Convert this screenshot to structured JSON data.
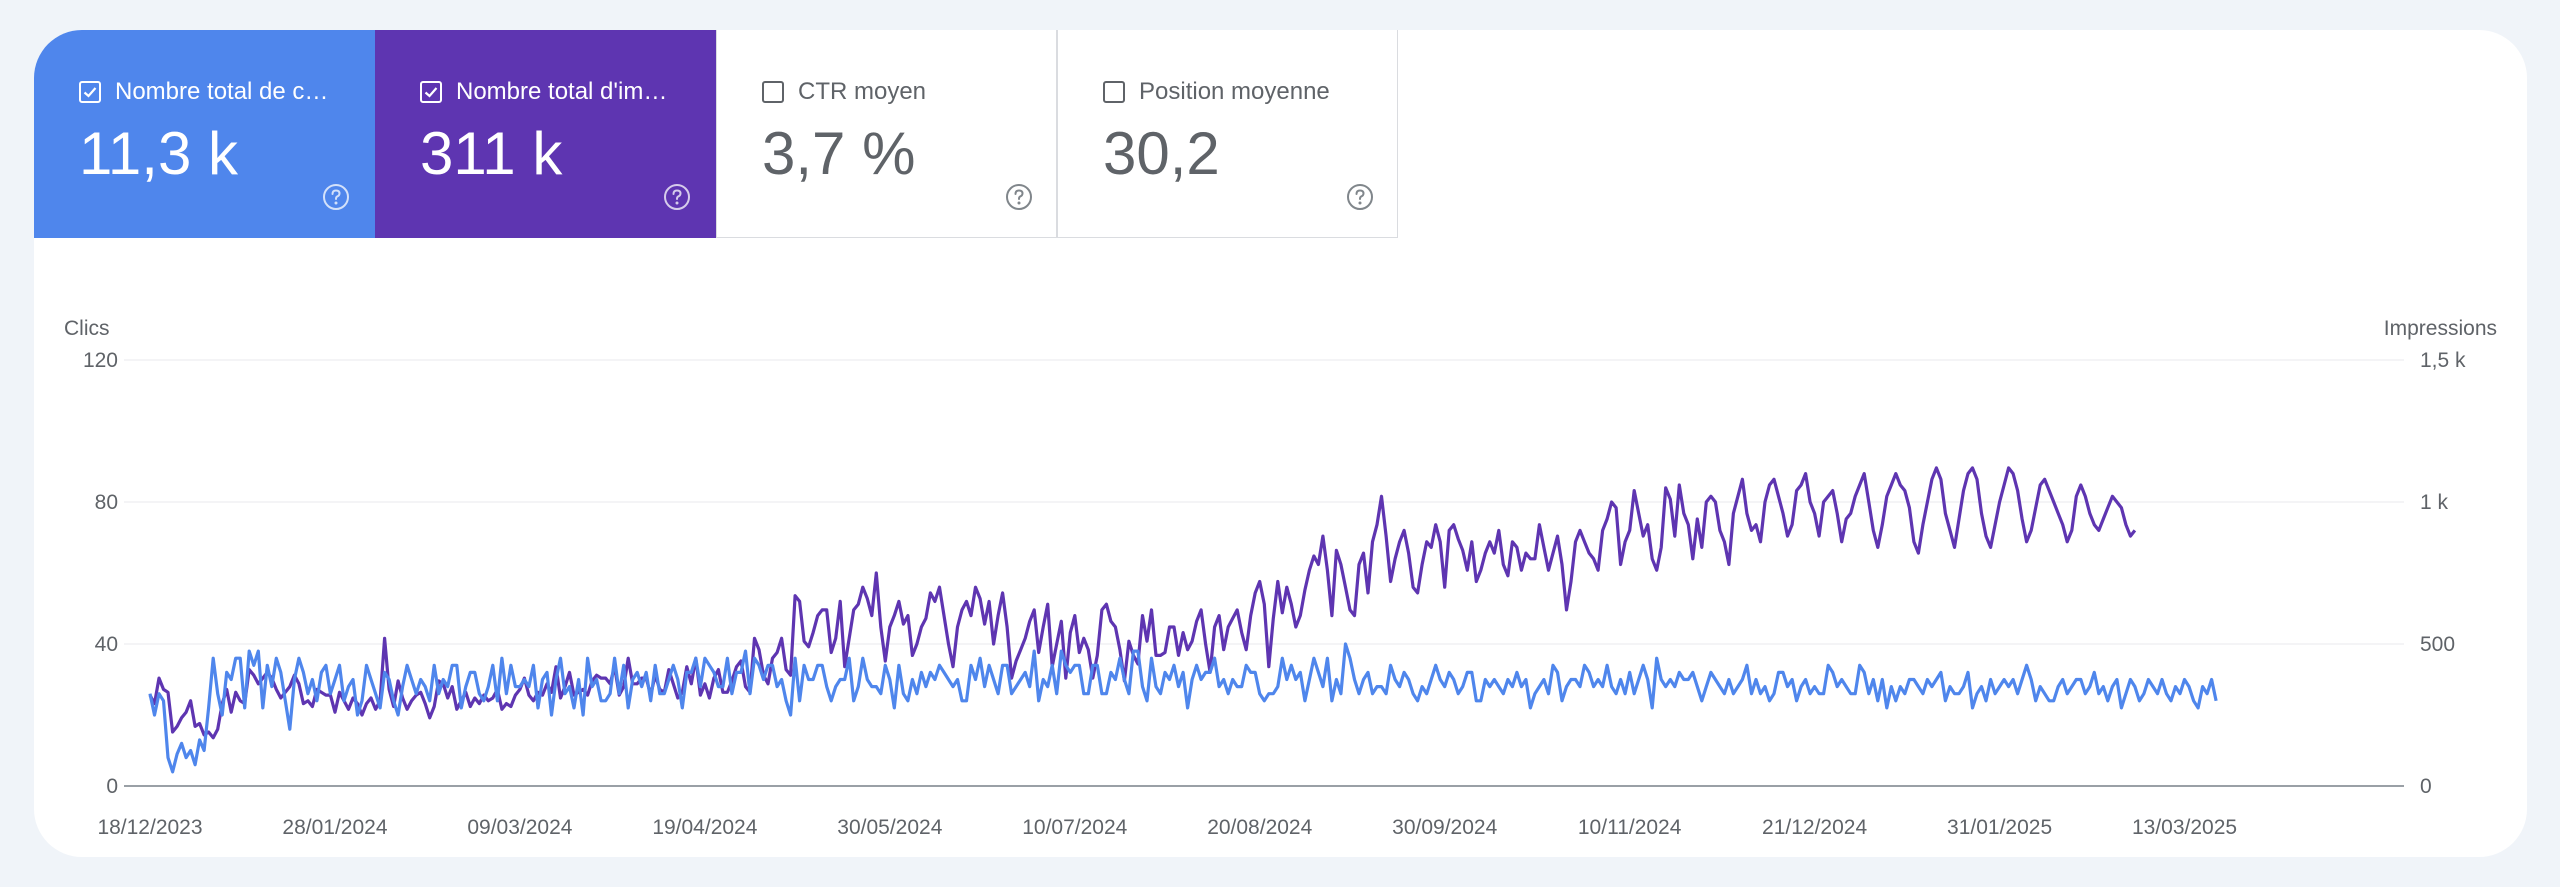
{
  "metrics": [
    {
      "label": "Nombre total de c…",
      "value": "11,3 k",
      "checked": true,
      "color": "#4f86ec"
    },
    {
      "label": "Nombre total d'im…",
      "value": "311 k",
      "checked": true,
      "color": "#5e35b1"
    },
    {
      "label": "CTR moyen",
      "value": "3,7 %",
      "checked": false,
      "color": "#ffffff"
    },
    {
      "label": "Position moyenne",
      "value": "30,2",
      "checked": false,
      "color": "#ffffff"
    }
  ],
  "chart_data": {
    "type": "line",
    "left_axis_title": "Clics",
    "right_axis_title": "Impressions",
    "left_ticks": [
      "0",
      "40",
      "80",
      "120"
    ],
    "right_ticks": [
      "0",
      "500",
      "1 k",
      "1,5 k"
    ],
    "y_left_range": [
      0,
      120
    ],
    "y_right_range": [
      0,
      1500
    ],
    "x_ticks": [
      "18/12/2023",
      "28/01/2024",
      "09/03/2024",
      "19/04/2024",
      "30/05/2024",
      "10/07/2024",
      "20/08/2024",
      "30/09/2024",
      "10/11/2024",
      "21/12/2024",
      "31/01/2025",
      "13/03/2025"
    ],
    "x_start": "2023-12-18",
    "x_end": "2025-04-24",
    "grid": true,
    "series": [
      {
        "axis": "left",
        "color": "#4f86ec",
        "start_date": "2023-12-18",
        "values": [
          26,
          20,
          26,
          24,
          8,
          4,
          9,
          12,
          8,
          10,
          6,
          13,
          10,
          22,
          36,
          26,
          20,
          32,
          30,
          36,
          36,
          22,
          38,
          34,
          38,
          22,
          34,
          28,
          36,
          32,
          24,
          16,
          30,
          36,
          32,
          26,
          30,
          24,
          32,
          34,
          26,
          30,
          34,
          24,
          28,
          30,
          20,
          24,
          34,
          30,
          26,
          22,
          32,
          30,
          24,
          20,
          28,
          34,
          30,
          26,
          30,
          28,
          24,
          34,
          26,
          30,
          28,
          34,
          34,
          22,
          28,
          32,
          32,
          26,
          24,
          28,
          34,
          24,
          36,
          26,
          34,
          28,
          28,
          30,
          28,
          34,
          22,
          30,
          32,
          20,
          30,
          36,
          26,
          28,
          22,
          30,
          20,
          36,
          28,
          30,
          24,
          24,
          26,
          36,
          26,
          34,
          22,
          30,
          32,
          28,
          32,
          24,
          34,
          26,
          26,
          30,
          34,
          30,
          22,
          32,
          32,
          36,
          28,
          36,
          34,
          32,
          28,
          28,
          36,
          26,
          32,
          32,
          38,
          26,
          36,
          34,
          30,
          34,
          34,
          28,
          30,
          24,
          20,
          36,
          24,
          34,
          30,
          30,
          34,
          34,
          28,
          24,
          28,
          30,
          30,
          36,
          24,
          28,
          36,
          30,
          28,
          28,
          26,
          34,
          30,
          22,
          34,
          26,
          24,
          30,
          26,
          32,
          28,
          32,
          30,
          34,
          32,
          30,
          28,
          30,
          24,
          24,
          34,
          30,
          36,
          28,
          34,
          30,
          26,
          34,
          34,
          26,
          28,
          30,
          32,
          28,
          38,
          24,
          30,
          28,
          34,
          26,
          38,
          34,
          32,
          34,
          34,
          26,
          26,
          34,
          34,
          26,
          26,
          32,
          30,
          36,
          30,
          26,
          38,
          38,
          28,
          24,
          36,
          28,
          26,
          32,
          30,
          34,
          28,
          32,
          22,
          30,
          34,
          30,
          32,
          32,
          36,
          28,
          30,
          26,
          30,
          28,
          28,
          34,
          32,
          32,
          26,
          24,
          26,
          26,
          28,
          36,
          30,
          34,
          30,
          32,
          24,
          30,
          36,
          32,
          28,
          36,
          24,
          30,
          26,
          40,
          36,
          30,
          26,
          30,
          32,
          26,
          28,
          28,
          26,
          34,
          30,
          28,
          32,
          30,
          26,
          24,
          28,
          26,
          30,
          34,
          30,
          28,
          32,
          30,
          26,
          28,
          32,
          32,
          24,
          24,
          30,
          28,
          30,
          28,
          26,
          30,
          28,
          32,
          28,
          30,
          22,
          26,
          28,
          30,
          26,
          34,
          32,
          24,
          28,
          30,
          30,
          28,
          34,
          32,
          28,
          30,
          28,
          34,
          28,
          26,
          30,
          26,
          32,
          26,
          30,
          34,
          30,
          22,
          36,
          30,
          28,
          30,
          28,
          32,
          30,
          30,
          32,
          28,
          24,
          28,
          32,
          30,
          28,
          26,
          30,
          26,
          28,
          30,
          34,
          26,
          30,
          26,
          28,
          24,
          26,
          32,
          32,
          28,
          30,
          24,
          28,
          30,
          26,
          28,
          26,
          26,
          34,
          32,
          28,
          30,
          28,
          26,
          26,
          34,
          32,
          26,
          30,
          24,
          30,
          22,
          28,
          24,
          28,
          26,
          30,
          30,
          28,
          26,
          30,
          28,
          30,
          32,
          24,
          28,
          26,
          26,
          28,
          32,
          22,
          26,
          28,
          24,
          30,
          26,
          28,
          30,
          28,
          30,
          26,
          30,
          34,
          30,
          24,
          28,
          26,
          24,
          24,
          28,
          30,
          26,
          28,
          30,
          30,
          26,
          28,
          32,
          26,
          28,
          24,
          28,
          30,
          22,
          26,
          30,
          28,
          24,
          26,
          30,
          28,
          26,
          30,
          26,
          24,
          28,
          26,
          30,
          28,
          24,
          22,
          28,
          26,
          30,
          24
        ]
      },
      {
        "axis": "right",
        "color": "#5e35b1",
        "start_date": "2023-12-18",
        "values": [
          320,
          290,
          380,
          340,
          330,
          190,
          210,
          240,
          260,
          300,
          210,
          220,
          180,
          190,
          170,
          200,
          290,
          340,
          260,
          330,
          300,
          290,
          410,
          390,
          360,
          380,
          400,
          380,
          340,
          310,
          330,
          350,
          390,
          360,
          290,
          300,
          280,
          340,
          330,
          320,
          320,
          260,
          330,
          300,
          270,
          310,
          290,
          250,
          290,
          310,
          270,
          300,
          520,
          340,
          280,
          370,
          310,
          270,
          300,
          320,
          330,
          290,
          240,
          280,
          370,
          360,
          310,
          350,
          270,
          300,
          330,
          280,
          310,
          290,
          320,
          300,
          310,
          340,
          270,
          290,
          280,
          320,
          340,
          380,
          320,
          300,
          330,
          320,
          360,
          330,
          420,
          310,
          350,
          400,
          320,
          330,
          340,
          320,
          370,
          390,
          380,
          380,
          360,
          420,
          320,
          350,
          450,
          360,
          360,
          380,
          380,
          320,
          390,
          340,
          330,
          410,
          360,
          310,
          330,
          420,
          360,
          450,
          320,
          360,
          310,
          380,
          410,
          330,
          330,
          370,
          420,
          440,
          350,
          330,
          520,
          480,
          390,
          360,
          450,
          470,
          520,
          410,
          390,
          670,
          650,
          510,
          490,
          540,
          600,
          620,
          620,
          470,
          520,
          650,
          420,
          520,
          620,
          640,
          700,
          660,
          600,
          750,
          560,
          440,
          560,
          600,
          650,
          570,
          600,
          460,
          500,
          560,
          590,
          680,
          650,
          700,
          600,
          500,
          420,
          560,
          620,
          650,
          600,
          700,
          660,
          570,
          650,
          500,
          600,
          680,
          560,
          380,
          440,
          480,
          520,
          580,
          620,
          470,
          560,
          640,
          420,
          500,
          580,
          380,
          540,
          600,
          470,
          520,
          480,
          380,
          460,
          620,
          640,
          580,
          560,
          480,
          370,
          510,
          460,
          430,
          600,
          510,
          620,
          460,
          460,
          470,
          560,
          560,
          460,
          540,
          480,
          510,
          580,
          620,
          500,
          400,
          560,
          600,
          480,
          560,
          590,
          620,
          540,
          480,
          600,
          680,
          720,
          640,
          420,
          590,
          720,
          610,
          700,
          640,
          560,
          600,
          690,
          760,
          810,
          780,
          880,
          760,
          600,
          830,
          780,
          700,
          620,
          600,
          780,
          820,
          680,
          860,
          920,
          1020,
          880,
          720,
          800,
          860,
          900,
          820,
          700,
          680,
          780,
          860,
          840,
          920,
          860,
          700,
          900,
          920,
          870,
          830,
          760,
          860,
          720,
          760,
          820,
          860,
          820,
          900,
          780,
          740,
          860,
          840,
          760,
          820,
          800,
          800,
          920,
          840,
          760,
          820,
          880,
          780,
          620,
          720,
          860,
          900,
          860,
          820,
          800,
          760,
          900,
          940,
          1000,
          980,
          780,
          860,
          900,
          1040,
          960,
          880,
          920,
          800,
          760,
          840,
          1050,
          1010,
          880,
          1060,
          960,
          920,
          800,
          940,
          840,
          1000,
          1020,
          1000,
          900,
          860,
          780,
          960,
          1020,
          1080,
          960,
          900,
          920,
          860,
          1000,
          1060,
          1080,
          1020,
          960,
          880,
          920,
          1040,
          1060,
          1100,
          1000,
          960,
          880,
          1000,
          1020,
          1040,
          960,
          860,
          940,
          960,
          1020,
          1060,
          1100,
          1000,
          900,
          840,
          920,
          1020,
          1060,
          1100,
          1060,
          1040,
          980,
          860,
          820,
          920,
          1000,
          1080,
          1120,
          1080,
          960,
          900,
          840,
          940,
          1040,
          1100,
          1120,
          1080,
          960,
          880,
          840,
          920,
          1000,
          1060,
          1120,
          1100,
          1040,
          940,
          860,
          900,
          980,
          1060,
          1080,
          1040,
          1000,
          960,
          920,
          860,
          900,
          1020,
          1060,
          1020,
          960,
          920,
          900,
          940,
          980,
          1020,
          1000,
          980,
          920,
          880,
          900
        ]
      }
    ]
  }
}
